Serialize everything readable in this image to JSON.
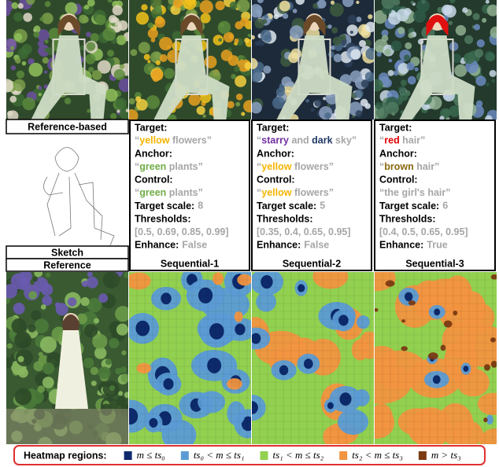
{
  "labels": {
    "reference_based": "Reference-based",
    "sketch": "Sketch",
    "reference": "Reference"
  },
  "panels": [
    {
      "fields": [
        {
          "label": "Target:",
          "value": [
            {
              "text": "“"
            },
            {
              "text": "yellow",
              "color": "#f5b400"
            },
            {
              "text": " flowers”"
            }
          ]
        },
        {
          "label": "Anchor:",
          "value": [
            {
              "text": "“"
            },
            {
              "text": "green",
              "color": "#70ad47"
            },
            {
              "text": " plants”"
            }
          ]
        },
        {
          "label": "Control:",
          "value": [
            {
              "text": "“"
            },
            {
              "text": "green",
              "color": "#70ad47"
            },
            {
              "text": " plants”"
            }
          ]
        },
        {
          "label": "Target scale:",
          "value": [
            {
              "text": "8"
            }
          ]
        },
        {
          "label": "Thresholds:",
          "value": [
            {
              "text": "[0.5, 0.69, 0.85, 0.99]"
            }
          ]
        },
        {
          "label": "Enhance:",
          "value": [
            {
              "text": "False"
            }
          ]
        }
      ],
      "caption": "Sequential-1"
    },
    {
      "fields": [
        {
          "label": "Target:",
          "value": [
            {
              "text": "“"
            },
            {
              "text": "starry",
              "color": "#7030a0"
            },
            {
              "text": " and "
            },
            {
              "text": "dark",
              "color": "#1f3864"
            },
            {
              "text": " sky”"
            }
          ]
        },
        {
          "label": "Anchor:",
          "value": [
            {
              "text": "“"
            },
            {
              "text": "yellow",
              "color": "#f5b400"
            },
            {
              "text": " flowers”"
            }
          ]
        },
        {
          "label": "Control:",
          "value": [
            {
              "text": "“"
            },
            {
              "text": "yellow",
              "color": "#f5b400"
            },
            {
              "text": " flowers”"
            }
          ]
        },
        {
          "label": "Target scale:",
          "value": [
            {
              "text": "5"
            }
          ]
        },
        {
          "label": "Thresholds:",
          "value": [
            {
              "text": "[0.35, 0.4, 0.65, 0.95]"
            }
          ]
        },
        {
          "label": "Enhance:",
          "value": [
            {
              "text": "False"
            }
          ]
        }
      ],
      "caption": "Sequential-2"
    },
    {
      "fields": [
        {
          "label": "Target:",
          "value": [
            {
              "text": "“"
            },
            {
              "text": "red",
              "color": "#e00000"
            },
            {
              "text": " hair”"
            }
          ]
        },
        {
          "label": "Anchor:",
          "value": [
            {
              "text": "“"
            },
            {
              "text": "brown",
              "color": "#8b6a10"
            },
            {
              "text": " hair”"
            }
          ]
        },
        {
          "label": "Control:",
          "value": [
            {
              "text": "“the girl's hair”"
            }
          ]
        },
        {
          "label": "Target scale:",
          "value": [
            {
              "text": "6"
            }
          ]
        },
        {
          "label": "Thresholds:",
          "value": [
            {
              "text": "[0.4, 0.5, 0.65, 0.95]"
            }
          ]
        },
        {
          "label": "Enhance:",
          "value": [
            {
              "text": "True"
            }
          ]
        }
      ],
      "caption": "Sequential-3"
    }
  ],
  "legend": {
    "title": "Heatmap regions:",
    "value_color": "#a6a6a6",
    "items": [
      {
        "label": "m ≤ ts₀",
        "color": "#0d2a6b"
      },
      {
        "label": "ts₀ < m ≤ ts₁",
        "color": "#5b9bd5"
      },
      {
        "label": "ts₁ < m ≤ ts₂",
        "color": "#92d050"
      },
      {
        "label": "ts₂ < m ≤ ts₃",
        "color": "#f29440"
      },
      {
        "label": "m > ts₃",
        "color": "#7b3a12"
      }
    ]
  }
}
